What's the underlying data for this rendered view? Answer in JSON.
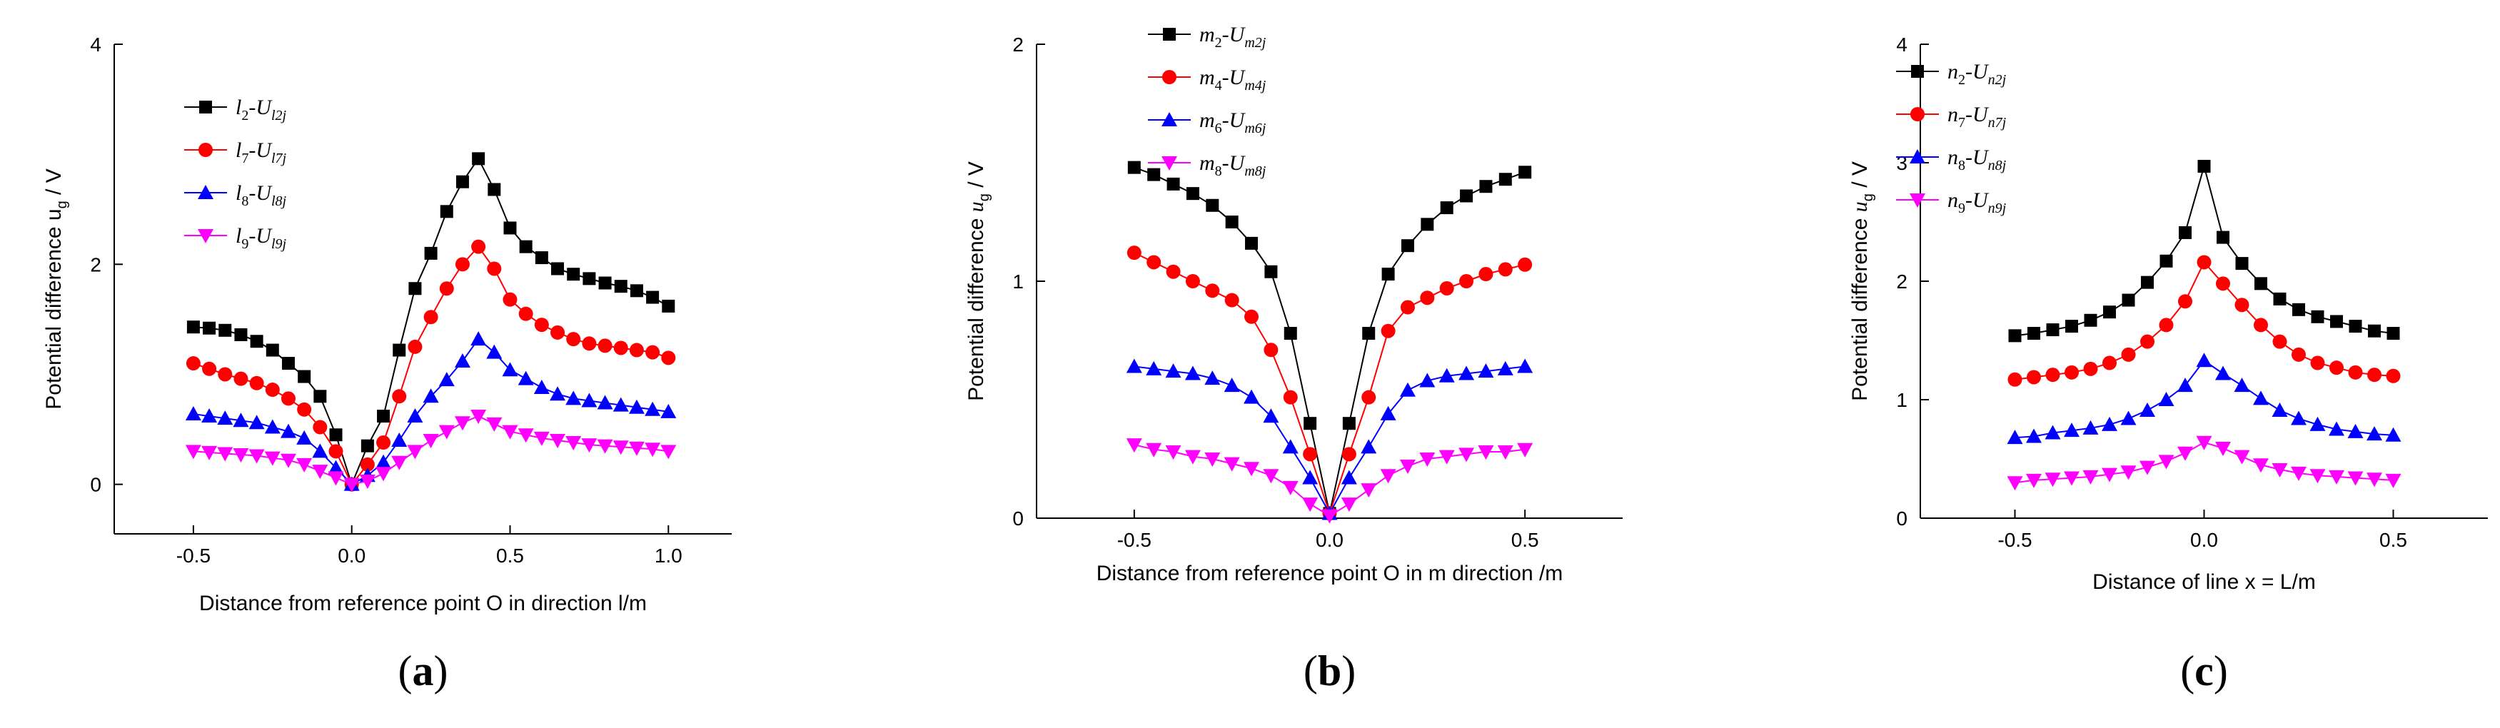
{
  "chart_data": [
    {
      "type": "line",
      "panel_label": "a",
      "xlabel": "Distance from reference point O in direction l/m",
      "ylabel": "Potential difference u",
      "ylabel_sub": "g",
      "ylabel_unit": " / V",
      "xlim": [
        -0.75,
        1.2
      ],
      "ylim": [
        -0.45,
        4
      ],
      "xticks": [
        -0.5,
        0.0,
        0.5,
        1.0
      ],
      "xtick_labels": [
        "-0.5",
        "0.0",
        "0.5",
        "1.0"
      ],
      "yticks": [
        0,
        2,
        4
      ],
      "ytick_labels": [
        "0",
        "2",
        "4"
      ],
      "legend_position": "top-left",
      "x": [
        -0.5,
        -0.45,
        -0.4,
        -0.35,
        -0.3,
        -0.25,
        -0.2,
        -0.15,
        -0.1,
        -0.05,
        0,
        0.05,
        0.1,
        0.15,
        0.2,
        0.25,
        0.3,
        0.35,
        0.4,
        0.45,
        0.5,
        0.55,
        0.6,
        0.65,
        0.7,
        0.75,
        0.8,
        0.85,
        0.9,
        0.95,
        1.0
      ],
      "series": [
        {
          "name": "l2-Ul2j",
          "base": "l",
          "base_sub": "2",
          "dash": "-U",
          "dash_sub": "l2j",
          "color": "#000000",
          "marker": "square",
          "values": [
            1.43,
            1.42,
            1.4,
            1.36,
            1.3,
            1.22,
            1.1,
            0.98,
            0.8,
            0.45,
            0.0,
            0.35,
            0.62,
            1.22,
            1.78,
            2.1,
            2.48,
            2.75,
            2.96,
            2.68,
            2.33,
            2.16,
            2.06,
            1.96,
            1.91,
            1.87,
            1.83,
            1.8,
            1.76,
            1.7,
            1.62
          ]
        },
        {
          "name": "l7-Ul7j",
          "base": "l",
          "base_sub": "7",
          "dash": "-U",
          "dash_sub": "l7j",
          "color": "#ff0000",
          "marker": "circle",
          "values": [
            1.1,
            1.05,
            1.0,
            0.96,
            0.92,
            0.86,
            0.78,
            0.68,
            0.52,
            0.3,
            0.0,
            0.18,
            0.38,
            0.8,
            1.25,
            1.52,
            1.78,
            2.0,
            2.16,
            1.96,
            1.68,
            1.55,
            1.45,
            1.38,
            1.32,
            1.28,
            1.26,
            1.24,
            1.22,
            1.2,
            1.15
          ]
        },
        {
          "name": "l8-Ul8j",
          "base": "l",
          "base_sub": "8",
          "dash": "-U",
          "dash_sub": "l8j",
          "color": "#0000ff",
          "marker": "triangle-up",
          "values": [
            0.64,
            0.62,
            0.6,
            0.58,
            0.56,
            0.52,
            0.48,
            0.42,
            0.3,
            0.15,
            0.0,
            0.08,
            0.2,
            0.4,
            0.62,
            0.8,
            0.95,
            1.12,
            1.32,
            1.2,
            1.04,
            0.96,
            0.88,
            0.82,
            0.78,
            0.76,
            0.74,
            0.72,
            0.7,
            0.68,
            0.66
          ]
        },
        {
          "name": "l9-Ul9j",
          "base": "l",
          "base_sub": "9",
          "dash": "-U",
          "dash_sub": "l9j",
          "color": "#ff00ff",
          "marker": "triangle-down",
          "values": [
            0.3,
            0.29,
            0.28,
            0.27,
            0.26,
            0.24,
            0.22,
            0.18,
            0.12,
            0.06,
            0.0,
            0.03,
            0.1,
            0.2,
            0.3,
            0.4,
            0.48,
            0.56,
            0.62,
            0.55,
            0.48,
            0.45,
            0.42,
            0.4,
            0.38,
            0.36,
            0.35,
            0.34,
            0.33,
            0.32,
            0.3
          ]
        }
      ]
    },
    {
      "type": "line",
      "panel_label": "b",
      "xlabel": "Distance from reference point O in m direction /m",
      "ylabel": "Potential difference ",
      "ylabel_var": "u",
      "ylabel_sub": "g",
      "ylabel_unit": " / V",
      "xlim": [
        -0.75,
        0.75
      ],
      "ylim": [
        0,
        2
      ],
      "xticks": [
        -0.5,
        0.0,
        0.5
      ],
      "xtick_labels": [
        "-0.5",
        "0.0",
        "0.5"
      ],
      "yticks": [
        0,
        1,
        2
      ],
      "ytick_labels": [
        "0",
        "1",
        "2"
      ],
      "legend_position": "top-left",
      "x": [
        -0.5,
        -0.45,
        -0.4,
        -0.35,
        -0.3,
        -0.25,
        -0.2,
        -0.15,
        -0.1,
        -0.05,
        0,
        0.05,
        0.1,
        0.15,
        0.2,
        0.25,
        0.3,
        0.35,
        0.4,
        0.45,
        0.5
      ],
      "series": [
        {
          "name": "m2-Um2j",
          "base": "m",
          "base_sub": "2",
          "dash": "-U",
          "dash_sub": "m2j",
          "color": "#000000",
          "marker": "square",
          "values": [
            1.48,
            1.45,
            1.41,
            1.37,
            1.32,
            1.25,
            1.16,
            1.04,
            0.78,
            0.4,
            0.02,
            0.4,
            0.78,
            1.03,
            1.15,
            1.24,
            1.31,
            1.36,
            1.4,
            1.43,
            1.46
          ]
        },
        {
          "name": "m4-Um4j",
          "base": "m",
          "base_sub": "4",
          "dash": "-U",
          "dash_sub": "m4j",
          "color": "#ff0000",
          "marker": "circle",
          "values": [
            1.12,
            1.08,
            1.04,
            1.0,
            0.96,
            0.92,
            0.85,
            0.71,
            0.51,
            0.27,
            0.02,
            0.27,
            0.51,
            0.79,
            0.89,
            0.93,
            0.97,
            1.0,
            1.03,
            1.05,
            1.07
          ]
        },
        {
          "name": "m6-Um6j",
          "base": "m",
          "base_sub": "6",
          "dash": "-U",
          "dash_sub": "m6j",
          "color": "#0000ff",
          "marker": "triangle-up",
          "values": [
            0.64,
            0.63,
            0.62,
            0.61,
            0.59,
            0.56,
            0.51,
            0.43,
            0.3,
            0.17,
            0.02,
            0.17,
            0.3,
            0.44,
            0.54,
            0.58,
            0.6,
            0.61,
            0.62,
            0.63,
            0.64
          ]
        },
        {
          "name": "m8-Um8j",
          "base": "m",
          "base_sub": "8",
          "dash": "-U",
          "dash_sub": "m8j",
          "color": "#ff00ff",
          "marker": "triangle-down",
          "values": [
            0.31,
            0.29,
            0.28,
            0.26,
            0.25,
            0.23,
            0.21,
            0.18,
            0.13,
            0.06,
            0.01,
            0.06,
            0.12,
            0.18,
            0.22,
            0.25,
            0.26,
            0.27,
            0.28,
            0.28,
            0.29
          ]
        }
      ]
    },
    {
      "type": "line",
      "panel_label": "c",
      "xlabel": "Distance of line x = L/m",
      "ylabel": "Potential difference ",
      "ylabel_var": "u",
      "ylabel_sub": "g",
      "ylabel_unit": " / V",
      "xlim": [
        -0.75,
        0.75
      ],
      "ylim": [
        0,
        4
      ],
      "xticks": [
        -0.5,
        0.0,
        0.5
      ],
      "xtick_labels": [
        "-0.5",
        "0.0",
        "0.5"
      ],
      "yticks": [
        0,
        1,
        2,
        3,
        4
      ],
      "ytick_labels": [
        "0",
        "1",
        "2",
        "3",
        "4"
      ],
      "legend_position": "top-left",
      "x": [
        -0.5,
        -0.45,
        -0.4,
        -0.35,
        -0.3,
        -0.25,
        -0.2,
        -0.15,
        -0.1,
        -0.05,
        0,
        0.05,
        0.1,
        0.15,
        0.2,
        0.25,
        0.3,
        0.35,
        0.4,
        0.45,
        0.5
      ],
      "series": [
        {
          "name": "n2-Un2j",
          "base": "n",
          "base_sub": "2",
          "dash": "-U",
          "dash_sub": "n2j",
          "color": "#000000",
          "marker": "square",
          "values": [
            1.54,
            1.56,
            1.59,
            1.62,
            1.67,
            1.74,
            1.84,
            1.99,
            2.17,
            2.41,
            2.97,
            2.37,
            2.15,
            1.98,
            1.85,
            1.76,
            1.7,
            1.66,
            1.62,
            1.58,
            1.56
          ]
        },
        {
          "name": "n7-Un7j",
          "base": "n",
          "base_sub": "7",
          "dash": "-U",
          "dash_sub": "n7j",
          "color": "#ff0000",
          "marker": "circle",
          "values": [
            1.17,
            1.19,
            1.21,
            1.23,
            1.26,
            1.31,
            1.38,
            1.49,
            1.63,
            1.83,
            2.16,
            1.98,
            1.8,
            1.63,
            1.49,
            1.38,
            1.31,
            1.27,
            1.23,
            1.21,
            1.2
          ]
        },
        {
          "name": "n8-Un8j",
          "base": "n",
          "base_sub": "8",
          "dash": "-U",
          "dash_sub": "n8j",
          "color": "#0000ff",
          "marker": "triangle-up",
          "values": [
            0.68,
            0.69,
            0.72,
            0.74,
            0.76,
            0.79,
            0.84,
            0.91,
            1.0,
            1.12,
            1.33,
            1.22,
            1.12,
            1.01,
            0.91,
            0.84,
            0.79,
            0.75,
            0.73,
            0.71,
            0.7
          ]
        },
        {
          "name": "n9-Un9j",
          "base": "n",
          "base_sub": "9",
          "dash": "-U",
          "dash_sub": "n9j",
          "color": "#ff00ff",
          "marker": "triangle-down",
          "values": [
            0.3,
            0.32,
            0.33,
            0.34,
            0.35,
            0.37,
            0.39,
            0.43,
            0.48,
            0.55,
            0.64,
            0.59,
            0.52,
            0.45,
            0.41,
            0.38,
            0.36,
            0.35,
            0.34,
            0.33,
            0.32
          ]
        }
      ]
    }
  ]
}
